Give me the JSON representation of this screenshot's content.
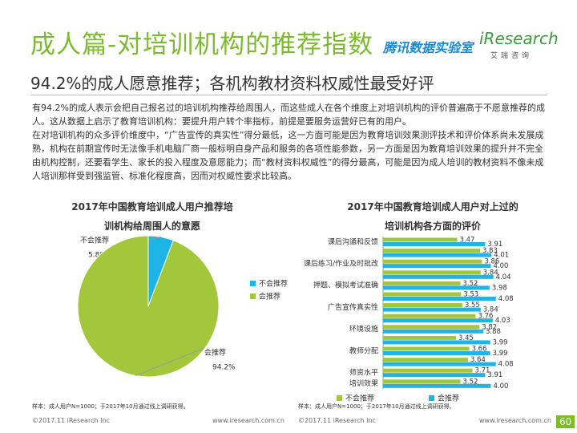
{
  "header": {
    "title": "成人篇-对培训机构的推荐指数",
    "logo_tencent": "腾讯数据实验室",
    "logo_iresearch": "iResearch",
    "logo_cn": "艾瑞咨询",
    "subtitle": "94.2%的成人愿意推荐；各机构教材资料权威性最受好评"
  },
  "paragraphs": [
    "有94.2%的成人表示会把自己报名过的培训机构推荐给周围人，而这些成人在各个维度上对培训机构的评价普遍高于不愿意推荐的成人。这从数据上启示了教育培训机构：要提升用户转个率指标，前提是要服务运营好已有的用户。",
    "在对培训机构的众多评价维度中，“广告宣传的真实性”得分最低，这一方面可能是因为教育培训效果测评技术和评价体系尚未发展成熟，机构在前期宣传时无法像手机电脑厂商一般标明自身产品和服务的各项性能参数，另一方面是因为教育培训效果的提升并不完全由机构控制，还要看学生、家长的投入程度及意愿能力；而“教材资料权威性”的得分最高，可能是因为成人培训的教材资料不像未成人培训那样受到强监管、标准化程度高，因而对权威性要求比较高。"
  ],
  "chart_data": [
    {
      "type": "pie",
      "title": "2017年中国教育培训成人用户推荐培训机构给周围人的意愿",
      "categories": [
        "不会推荐",
        "会推荐"
      ],
      "values": [
        5.8,
        94.2
      ],
      "value_labels": [
        "5.8%",
        "94.2%"
      ],
      "colors": [
        "#1fb4e6",
        "#a3c73a"
      ],
      "legend": "right",
      "note": "样本：成人用户N=1000；于2017年10月通过线上调研获得。"
    },
    {
      "type": "hbar",
      "title": "2017年中国教育培训成人用户对上过的培训机构各方面的评价",
      "categories": [
        "课后沟通和反馈",
        null,
        "课后练习/作业及时批改",
        null,
        "押题、模拟考试准确",
        null,
        "广告宣传真实性",
        null,
        "环境设施",
        null,
        "教师分配",
        null,
        "师资水平",
        "培训效果"
      ],
      "series": [
        {
          "name": "不会推荐",
          "color": "#a3c73a",
          "values": [
            3.47,
            3.83,
            3.86,
            3.84,
            3.52,
            3.53,
            3.55,
            3.76,
            3.82,
            3.45,
            3.66,
            3.64,
            3.71,
            3.52
          ]
        },
        {
          "name": "会推荐",
          "color": "#1fb4e6",
          "values": [
            3.91,
            4.01,
            4.0,
            4.04,
            3.98,
            4.08,
            3.84,
            4.03,
            3.88,
            3.99,
            3.99,
            4.08,
            3.91,
            4.0
          ]
        }
      ],
      "value_labels": [
        [
          "3.47",
          "3.83",
          "3.86",
          "3.84",
          "3.52",
          "3.53",
          "3.55",
          "3.76",
          "3.82",
          "3.45",
          "3.66",
          "3.64",
          "3.71",
          "3.52"
        ],
        [
          "3.91",
          "4.01",
          "4.00",
          "4.04",
          "3.98",
          "4.08",
          "3.84",
          "4.03",
          "3.88",
          "3.99",
          "3.99",
          "4.08",
          "3.91",
          "4.00"
        ]
      ],
      "xlim": [
        2.3,
        4.5
      ],
      "legend": "bottom",
      "note": "样本：成人用户N=1000；于2017年10月通过线上调研获得。"
    }
  ],
  "footer": {
    "copyright": "©2017.11 iResearch Inc",
    "url": "www.iresearch.com.cn",
    "page": "60"
  }
}
